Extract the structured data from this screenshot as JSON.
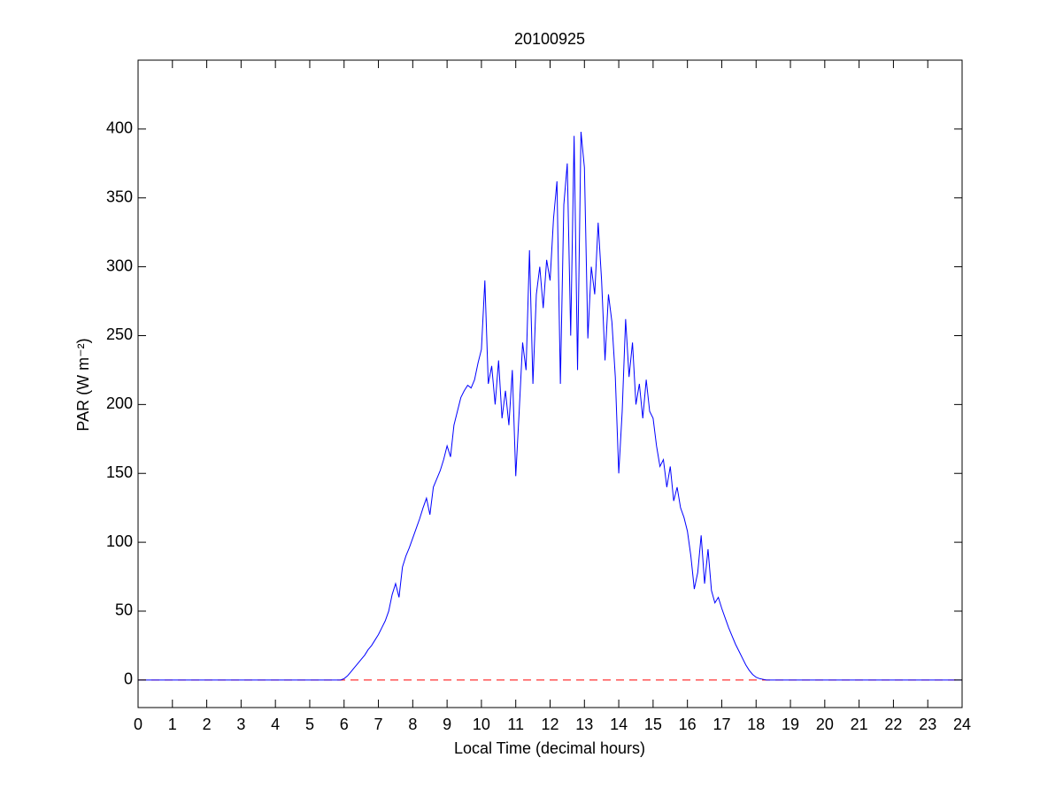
{
  "chart_data": {
    "type": "line",
    "title": "20100925",
    "xlabel": "Local Time (decimal hours)",
    "ylabel": "PAR (W m⁻²)",
    "x": [
      0,
      5.9,
      6.0,
      6.1,
      6.2,
      6.3,
      6.4,
      6.5,
      6.6,
      6.7,
      6.8,
      6.9,
      7.0,
      7.1,
      7.2,
      7.3,
      7.4,
      7.5,
      7.6,
      7.7,
      7.8,
      7.9,
      8.0,
      8.1,
      8.2,
      8.3,
      8.4,
      8.5,
      8.6,
      8.7,
      8.8,
      8.9,
      9.0,
      9.1,
      9.2,
      9.3,
      9.4,
      9.5,
      9.6,
      9.7,
      9.8,
      9.9,
      10.0,
      10.1,
      10.2,
      10.3,
      10.4,
      10.5,
      10.6,
      10.7,
      10.8,
      10.9,
      11.0,
      11.1,
      11.2,
      11.3,
      11.4,
      11.5,
      11.6,
      11.7,
      11.8,
      11.9,
      12.0,
      12.1,
      12.2,
      12.3,
      12.4,
      12.5,
      12.6,
      12.7,
      12.8,
      12.9,
      13.0,
      13.1,
      13.2,
      13.3,
      13.4,
      13.5,
      13.6,
      13.7,
      13.8,
      13.9,
      14.0,
      14.1,
      14.2,
      14.3,
      14.4,
      14.5,
      14.6,
      14.7,
      14.8,
      14.9,
      15.0,
      15.1,
      15.2,
      15.3,
      15.4,
      15.5,
      15.6,
      15.7,
      15.8,
      15.9,
      16.0,
      16.1,
      16.2,
      16.3,
      16.4,
      16.5,
      16.6,
      16.7,
      16.8,
      16.9,
      17.0,
      17.1,
      17.2,
      17.3,
      17.4,
      17.5,
      17.6,
      17.7,
      17.8,
      17.9,
      18.0,
      18.1,
      18.2,
      18.3,
      24
    ],
    "values": [
      0,
      0,
      1,
      3,
      6,
      9,
      12,
      15,
      18,
      22,
      25,
      29,
      33,
      38,
      43,
      50,
      62,
      70,
      60,
      82,
      90,
      96,
      103,
      110,
      117,
      125,
      132,
      120,
      140,
      146,
      152,
      160,
      170,
      162,
      185,
      195,
      205,
      210,
      214,
      212,
      218,
      230,
      240,
      290,
      215,
      228,
      200,
      232,
      190,
      210,
      185,
      225,
      148,
      195,
      245,
      225,
      312,
      215,
      280,
      300,
      270,
      305,
      290,
      335,
      362,
      215,
      345,
      375,
      250,
      395,
      225,
      398,
      372,
      248,
      300,
      280,
      332,
      290,
      232,
      280,
      260,
      220,
      150,
      195,
      262,
      220,
      245,
      200,
      215,
      190,
      218,
      195,
      190,
      170,
      155,
      160,
      140,
      155,
      130,
      140,
      125,
      118,
      108,
      90,
      66,
      78,
      105,
      70,
      95,
      65,
      56,
      60,
      52,
      45,
      38,
      32,
      26,
      21,
      16,
      11,
      7,
      4,
      2,
      1,
      0.5,
      0,
      0
    ],
    "color": "#0000ff",
    "reference_line": {
      "value": 0,
      "color": "#ff0000",
      "style": "dashed"
    },
    "xlim": [
      0,
      24
    ],
    "xticks": [
      0,
      1,
      2,
      3,
      4,
      5,
      6,
      7,
      8,
      9,
      10,
      11,
      12,
      13,
      14,
      15,
      16,
      17,
      18,
      19,
      20,
      21,
      22,
      23,
      24
    ],
    "ylim": [
      -20,
      450
    ],
    "yticks": [
      0,
      50,
      100,
      150,
      200,
      250,
      300,
      350,
      400
    ],
    "grid": false
  }
}
